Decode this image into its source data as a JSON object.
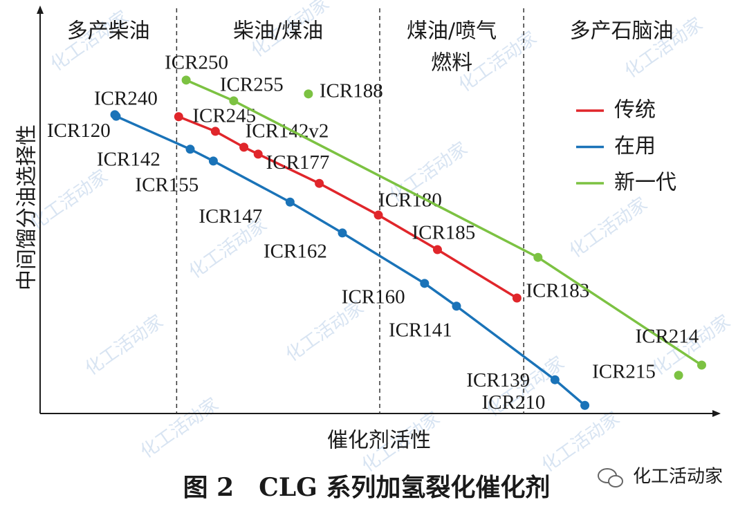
{
  "chart_data": {
    "type": "line",
    "xlabel": "催化剂活性",
    "ylabel": "中间馏分油选择性",
    "caption": "图 2　CLG 系列加氢裂化催化剂",
    "watermark": "化工活动家",
    "xlim": [
      0,
      100
    ],
    "ylim": [
      0,
      100
    ],
    "legend": "upper right",
    "regions": {
      "boundaries": [
        20.1,
        50.0,
        71.2
      ],
      "labels": [
        [
          "多产柴油"
        ],
        [
          "柴油/煤油"
        ],
        [
          "煤油/喷气",
          "燃料"
        ],
        [
          "多产石脑油"
        ]
      ]
    },
    "series": [
      {
        "name": "传统",
        "color": "#e0262b",
        "x": [
          20.4,
          25.8,
          30.0,
          32.1,
          41.1,
          49.8,
          58.5,
          70.2
        ],
        "values": [
          73.0,
          69.4,
          65.5,
          63.8,
          56.6,
          48.8,
          40.3,
          28.4
        ],
        "point_labels": [
          "ICR245",
          null,
          "ICR142v2",
          null,
          "ICR177",
          "ICR180",
          "ICR185",
          "ICR183"
        ]
      },
      {
        "name": "在用",
        "color": "#1a73b8",
        "x": [
          11.0,
          11.2,
          22.1,
          25.5,
          36.8,
          44.5,
          56.6,
          61.3,
          75.8,
          80.2
        ],
        "values": [
          73.5,
          73.1,
          65.0,
          62.1,
          52.0,
          44.4,
          32.0,
          26.4,
          8.3,
          2.0
        ],
        "point_labels": [
          "ICR240",
          "ICR120",
          "ICR142",
          "ICR155",
          "ICR147",
          "ICR162",
          "ICR160",
          "ICR141",
          "ICR139",
          "ICR210"
        ]
      },
      {
        "name": "新一代",
        "color": "#7cc242",
        "x": [
          21.5,
          28.5,
          39.5,
          73.3,
          94.0,
          97.4
        ],
        "values": [
          82.0,
          76.9,
          78.6,
          38.4,
          9.4,
          11.9
        ],
        "point_labels": [
          "ICR250",
          "ICR255",
          "ICR188",
          null,
          "ICR215",
          "ICR214"
        ],
        "on_line": [
          true,
          true,
          false,
          true,
          false,
          true
        ]
      }
    ]
  }
}
